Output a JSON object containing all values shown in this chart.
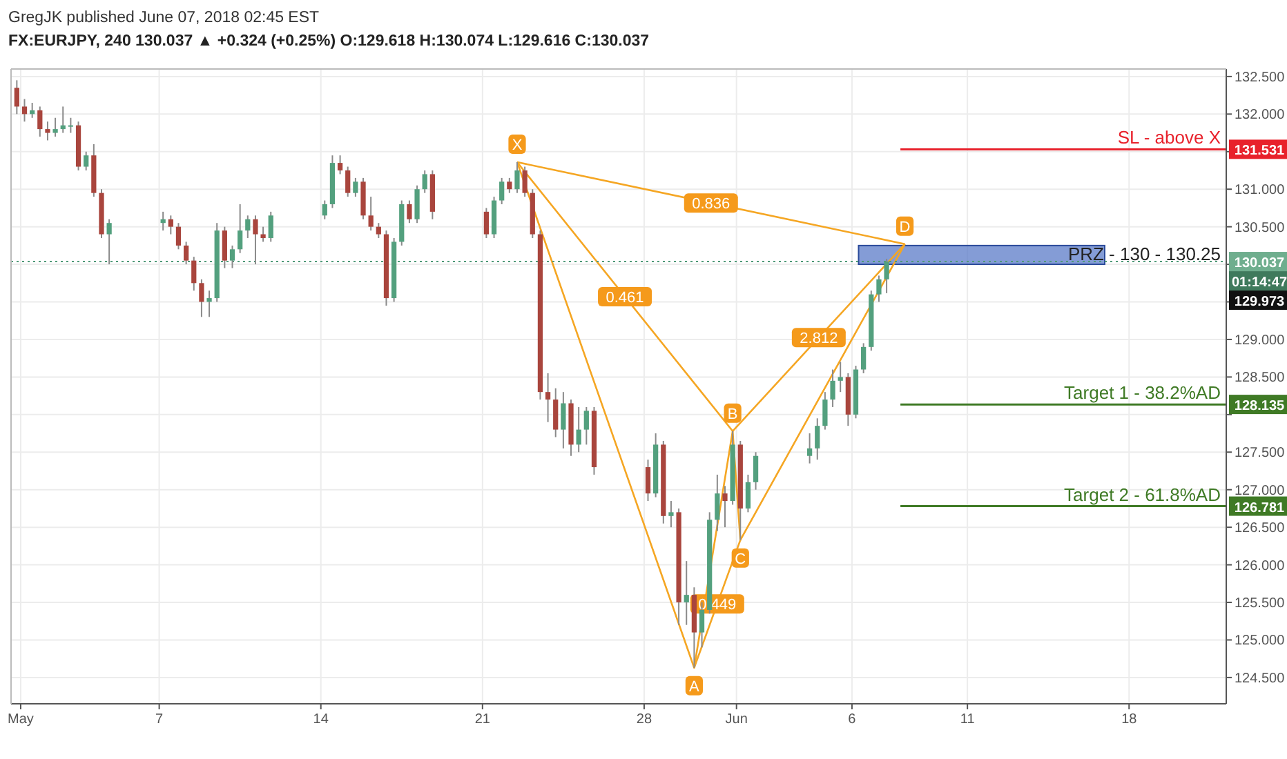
{
  "chart_data": {
    "type": "candlestick",
    "title": "GregJK published June 07, 2018 02:45 EST",
    "subtitle": "FX:EURJPY, 240  130.037 ▲ +0.324 (+0.25%) O:129.618 H:130.074 L:129.616 C:130.037",
    "x": [
      "2018-04-30T20:00",
      "2018-05-01T04:00",
      "2018-05-01T12:00",
      "2018-05-01T20:00",
      "2018-05-02T04:00",
      "2018-05-02T12:00",
      "2018-05-02T20:00",
      "2018-05-03T04:00",
      "2018-05-03T12:00",
      "2018-05-03T20:00",
      "2018-05-04T04:00",
      "2018-05-04T12:00",
      "2018-05-04T20:00",
      "2018-05-07T04:00",
      "2018-05-07T12:00",
      "2018-05-07T20:00",
      "2018-05-08T04:00",
      "2018-05-08T12:00",
      "2018-05-08T20:00",
      "2018-05-09T04:00",
      "2018-05-09T12:00",
      "2018-05-09T20:00",
      "2018-05-10T04:00",
      "2018-05-10T12:00",
      "2018-05-10T20:00",
      "2018-05-11T04:00",
      "2018-05-11T12:00",
      "2018-05-11T20:00",
      "2018-05-14T04:00",
      "2018-05-14T12:00",
      "2018-05-14T20:00",
      "2018-05-15T04:00",
      "2018-05-15T12:00",
      "2018-05-15T20:00",
      "2018-05-16T04:00",
      "2018-05-16T12:00",
      "2018-05-16T20:00",
      "2018-05-17T04:00",
      "2018-05-17T12:00",
      "2018-05-17T20:00",
      "2018-05-18T04:00",
      "2018-05-18T12:00",
      "2018-05-18T20:00",
      "2018-05-21T04:00",
      "2018-05-21T12:00",
      "2018-05-21T20:00",
      "2018-05-22T04:00",
      "2018-05-22T12:00",
      "2018-05-22T20:00",
      "2018-05-23T04:00",
      "2018-05-23T12:00",
      "2018-05-23T20:00",
      "2018-05-24T04:00",
      "2018-05-24T12:00",
      "2018-05-24T20:00",
      "2018-05-25T04:00",
      "2018-05-25T12:00",
      "2018-05-25T20:00",
      "2018-05-28T04:00",
      "2018-05-28T12:00",
      "2018-05-28T20:00",
      "2018-05-29T04:00",
      "2018-05-29T12:00",
      "2018-05-29T20:00",
      "2018-05-30T04:00",
      "2018-05-30T12:00",
      "2018-05-30T20:00",
      "2018-05-31T04:00",
      "2018-05-31T12:00",
      "2018-05-31T20:00",
      "2018-06-01T04:00",
      "2018-06-01T12:00",
      "2018-06-01T20:00",
      "2018-06-04T04:00",
      "2018-06-04T12:00",
      "2018-06-04T20:00",
      "2018-06-05T04:00",
      "2018-06-05T12:00",
      "2018-06-05T20:00",
      "2018-06-06T04:00",
      "2018-06-06T12:00",
      "2018-06-06T20:00",
      "2018-06-07T04:00",
      "2018-06-07T12:00"
    ],
    "ohlc": [
      [
        132.35,
        132.45,
        132.0,
        132.1
      ],
      [
        132.1,
        132.2,
        131.9,
        132.0
      ],
      [
        132.0,
        132.15,
        131.95,
        132.05
      ],
      [
        132.05,
        132.1,
        131.7,
        131.8
      ],
      [
        131.8,
        131.9,
        131.65,
        131.75
      ],
      [
        131.75,
        131.95,
        131.7,
        131.8
      ],
      [
        131.8,
        132.1,
        131.75,
        131.85
      ],
      [
        131.85,
        131.95,
        131.75,
        131.85
      ],
      [
        131.85,
        131.9,
        131.25,
        131.3
      ],
      [
        131.3,
        131.5,
        131.25,
        131.45
      ],
      [
        131.45,
        131.6,
        130.9,
        130.95
      ],
      [
        130.95,
        131.0,
        130.35,
        130.4
      ],
      [
        130.4,
        130.6,
        130.0,
        130.55
      ],
      [
        130.55,
        130.7,
        130.45,
        130.6
      ],
      [
        130.6,
        130.65,
        130.4,
        130.5
      ],
      [
        130.5,
        130.55,
        130.2,
        130.25
      ],
      [
        130.25,
        130.3,
        130.0,
        130.05
      ],
      [
        130.05,
        130.1,
        129.65,
        129.75
      ],
      [
        129.75,
        129.8,
        129.3,
        129.5
      ],
      [
        129.5,
        129.65,
        129.3,
        129.55
      ],
      [
        129.55,
        130.55,
        129.5,
        130.45
      ],
      [
        130.45,
        130.5,
        129.95,
        130.05
      ],
      [
        130.05,
        130.25,
        129.95,
        130.2
      ],
      [
        130.2,
        130.8,
        130.15,
        130.45
      ],
      [
        130.45,
        130.65,
        130.35,
        130.6
      ],
      [
        130.6,
        130.65,
        130.0,
        130.4
      ],
      [
        130.4,
        130.5,
        130.3,
        130.35
      ],
      [
        130.35,
        130.7,
        130.3,
        130.65
      ],
      [
        130.65,
        130.85,
        130.6,
        130.8
      ],
      [
        130.8,
        131.45,
        130.75,
        131.35
      ],
      [
        131.35,
        131.45,
        131.2,
        131.25
      ],
      [
        131.25,
        131.3,
        130.9,
        130.95
      ],
      [
        130.95,
        131.15,
        130.9,
        131.1
      ],
      [
        131.1,
        131.15,
        130.6,
        130.65
      ],
      [
        130.65,
        130.9,
        130.45,
        130.5
      ],
      [
        130.5,
        130.55,
        130.35,
        130.4
      ],
      [
        130.4,
        130.45,
        129.45,
        129.55
      ],
      [
        129.55,
        130.35,
        129.5,
        130.3
      ],
      [
        130.3,
        130.85,
        130.25,
        130.8
      ],
      [
        130.8,
        130.85,
        130.55,
        130.6
      ],
      [
        130.6,
        131.05,
        130.55,
        131.0
      ],
      [
        131.0,
        131.25,
        130.95,
        131.2
      ],
      [
        131.2,
        131.25,
        130.6,
        130.7
      ],
      [
        130.7,
        130.75,
        130.35,
        130.4
      ],
      [
        130.4,
        130.9,
        130.35,
        130.85
      ],
      [
        130.85,
        131.15,
        130.8,
        131.1
      ],
      [
        131.1,
        131.15,
        130.95,
        131.0
      ],
      [
        131.0,
        131.36,
        130.95,
        131.25
      ],
      [
        131.25,
        131.3,
        130.9,
        130.95
      ],
      [
        130.95,
        131.0,
        130.35,
        130.4
      ],
      [
        130.4,
        130.45,
        128.2,
        128.3
      ],
      [
        128.3,
        128.55,
        127.9,
        128.2
      ],
      [
        128.2,
        128.35,
        127.7,
        127.8
      ],
      [
        127.8,
        128.3,
        127.55,
        128.15
      ],
      [
        128.15,
        128.2,
        127.45,
        127.6
      ],
      [
        127.6,
        128.1,
        127.5,
        127.8
      ],
      [
        127.8,
        128.1,
        127.6,
        128.05
      ],
      [
        128.05,
        128.1,
        127.2,
        127.3
      ],
      [
        127.3,
        127.4,
        126.85,
        126.95
      ],
      [
        126.95,
        127.75,
        126.9,
        127.6
      ],
      [
        127.6,
        127.65,
        126.55,
        126.65
      ],
      [
        126.65,
        126.85,
        126.5,
        126.7
      ],
      [
        126.7,
        126.75,
        125.2,
        125.5
      ],
      [
        125.5,
        126.05,
        125.2,
        125.6
      ],
      [
        125.6,
        125.7,
        124.63,
        125.1
      ],
      [
        125.1,
        125.5,
        124.9,
        125.4
      ],
      [
        125.4,
        126.7,
        125.35,
        126.6
      ],
      [
        126.6,
        127.2,
        126.45,
        126.95
      ],
      [
        126.95,
        127.05,
        126.5,
        126.85
      ],
      [
        126.85,
        127.78,
        126.8,
        127.6
      ],
      [
        127.6,
        127.65,
        126.33,
        126.75
      ],
      [
        126.75,
        127.2,
        126.7,
        127.1
      ],
      [
        127.1,
        127.5,
        127.0,
        127.45
      ],
      [
        127.45,
        127.75,
        127.35,
        127.55
      ],
      [
        127.55,
        127.95,
        127.4,
        127.85
      ],
      [
        127.85,
        128.3,
        127.8,
        128.2
      ],
      [
        128.2,
        128.6,
        128.1,
        128.45
      ],
      [
        128.45,
        128.7,
        128.3,
        128.5
      ],
      [
        128.5,
        128.55,
        127.85,
        128.0
      ],
      [
        128.0,
        128.65,
        127.95,
        128.6
      ],
      [
        128.6,
        128.95,
        128.55,
        128.9
      ],
      [
        128.9,
        129.65,
        128.85,
        129.6
      ],
      [
        129.6,
        129.85,
        129.5,
        129.8
      ],
      [
        129.8,
        130.074,
        129.616,
        130.037
      ]
    ],
    "series": [
      {
        "type": "line",
        "x": [
          "2018-05-22T12:00",
          "2018-05-30T04:00",
          "2018-05-31T20:00",
          "2018-06-01T04:00",
          "2018-06-08T07:00"
        ],
        "values": [
          131.36,
          124.63,
          127.78,
          126.33,
          130.27
        ],
        "color": "#f5a623"
      },
      {
        "type": "line",
        "x": [
          "2018-05-22T12:00",
          "2018-05-31T20:00"
        ],
        "values": [
          131.36,
          127.78
        ],
        "color": "#f5a623"
      },
      {
        "type": "line",
        "x": [
          "2018-05-30T04:00",
          "2018-06-01T04:00"
        ],
        "values": [
          124.63,
          126.33
        ],
        "color": "#f5a623"
      },
      {
        "type": "line",
        "x": [
          "2018-05-31T20:00",
          "2018-06-08T07:00"
        ],
        "values": [
          127.78,
          130.27
        ],
        "color": "#f5a623"
      },
      {
        "type": "line",
        "x": [
          "2018-05-22T12:00",
          "2018-06-08T07:00"
        ],
        "values": [
          131.36,
          130.27
        ],
        "color": "#f5a623"
      }
    ],
    "marker": "none",
    "annotations": [
      {
        "text": "X",
        "x": "2018-05-22T12:00",
        "y": 131.36
      },
      {
        "text": "A",
        "x": "2018-05-30T04:00",
        "y": 124.63
      },
      {
        "text": "B",
        "x": "2018-05-31T20:00",
        "y": 127.78
      },
      {
        "text": "C",
        "x": "2018-06-01T04:00",
        "y": 126.33
      },
      {
        "text": "D",
        "x": "2018-06-08T07:00",
        "y": 130.27
      },
      {
        "text": "0.836",
        "x": "2018-05-30T21:30",
        "y": 130.815
      },
      {
        "text": "0.461",
        "x": "2018-05-27T04:00",
        "y": 129.57
      },
      {
        "text": "2.812",
        "x": "2018-06-04T13:30",
        "y": 129.025
      },
      {
        "text": "0.449",
        "x": "2018-05-31T04:00",
        "y": 125.48
      },
      "131.531",
      "130.037",
      "01:14:47",
      "129.973",
      "128.135",
      "126.781"
    ],
    "ref_lines": [
      {
        "axis": "y",
        "value": 131.531,
        "label": "SL - above X",
        "color": "#e8212b",
        "line_style": "solid"
      },
      {
        "axis": "y",
        "value": 128.135,
        "label": "Target 1 - 38.2%AD",
        "color": "#3f7a25",
        "line_style": "solid"
      },
      {
        "axis": "y",
        "value": 126.781,
        "label": "Target 2 - 61.8%AD",
        "color": "#3f7a25",
        "line_style": "solid"
      },
      {
        "axis": "y",
        "value": 130.037,
        "label": null,
        "color": "#4f9a78",
        "line_style": "dotted"
      }
    ],
    "bands": [
      {
        "axis": "y",
        "from": 130,
        "to": 130.25,
        "label": "PRZ - 130 - 130.25",
        "color": "#5b7bc8"
      }
    ],
    "xlim": [
      "2018-04-30T14:00",
      "2018-06-22T05:00"
    ],
    "xticks": [
      {
        "value": "2018-05-01",
        "label": "May"
      },
      {
        "value": "2018-05-07",
        "label": "7"
      },
      {
        "value": "2018-05-14",
        "label": "14"
      },
      {
        "value": "2018-05-21",
        "label": "21"
      },
      {
        "value": "2018-05-28",
        "label": "28"
      },
      {
        "value": "2018-06-01",
        "label": "Jun"
      },
      {
        "value": "2018-06-06",
        "label": "6"
      },
      {
        "value": "2018-06-11",
        "label": "11"
      },
      {
        "value": "2018-06-18",
        "label": "18"
      }
    ],
    "ylim": [
      124.15,
      132.6
    ],
    "yticks": [
      {
        "value": 124.5,
        "label": "124.500"
      },
      {
        "value": 125,
        "label": "125.000"
      },
      {
        "value": 125.5,
        "label": "125.500"
      },
      {
        "value": 126,
        "label": "126.000"
      },
      {
        "value": 126.5,
        "label": "126.500"
      },
      {
        "value": 127,
        "label": "127.000"
      },
      {
        "value": 127.5,
        "label": "127.500"
      },
      {
        "value": 128,
        "label": null
      },
      {
        "value": 128.5,
        "label": "128.500"
      },
      {
        "value": 129,
        "label": "129.000"
      },
      {
        "value": 129.5,
        "label": null
      },
      {
        "value": 130,
        "label": null
      },
      {
        "value": 130.5,
        "label": "130.500"
      },
      {
        "value": 131,
        "label": "131.000"
      },
      {
        "value": 131.5,
        "label": null
      },
      {
        "value": 132,
        "label": "132.000"
      },
      {
        "value": 132.5,
        "label": "132.500"
      }
    ],
    "grid": true
  }
}
